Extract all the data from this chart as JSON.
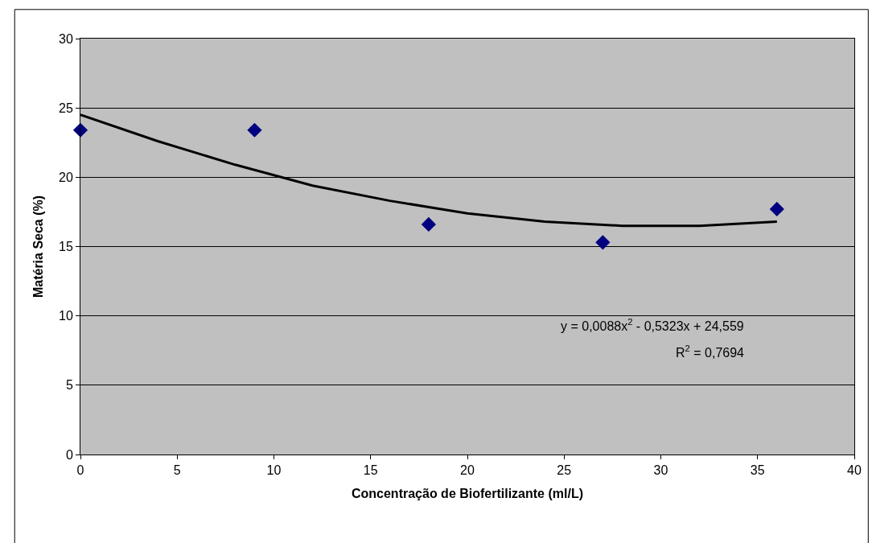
{
  "chart_data": {
    "type": "scatter",
    "xlabel": "Concentração de Biofertilizante (ml/L)",
    "ylabel": "Matéria Seca (%)",
    "xlim": [
      0,
      40
    ],
    "xticks": [
      0,
      5,
      10,
      15,
      20,
      25,
      30,
      35,
      40
    ],
    "ylim": [
      0,
      30
    ],
    "yticks": [
      0,
      5,
      10,
      15,
      20,
      25,
      30
    ],
    "grid": "y",
    "marker": "diamond",
    "series": [
      {
        "color": "#000080",
        "x": [
          0,
          9,
          18,
          27,
          36
        ],
        "values": [
          23.4,
          23.4,
          16.6,
          15.3,
          17.7
        ]
      },
      {
        "type": "line",
        "color": "#000000",
        "line_style": "solid",
        "marker": "none",
        "x": [
          0,
          4,
          8,
          12,
          16,
          20,
          24,
          28,
          32,
          36
        ],
        "values": [
          24.5,
          22.6,
          20.9,
          19.4,
          18.3,
          17.4,
          16.8,
          16.5,
          16.5,
          16.8
        ]
      }
    ],
    "annotations": [
      "y = 0,0088x$^{2}$ - 0,5323x + 24,559",
      "R$^{2}$ = 0,7694"
    ]
  }
}
